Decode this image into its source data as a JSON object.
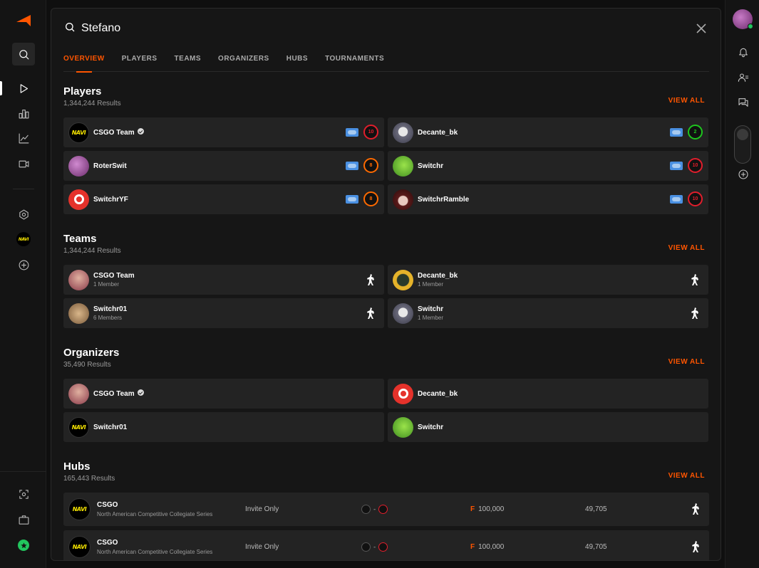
{
  "search": {
    "query": "Stefano"
  },
  "tabs": [
    {
      "label": "OVERVIEW"
    },
    {
      "label": "PLAYERS"
    },
    {
      "label": "TEAMS"
    },
    {
      "label": "ORGANIZERS"
    },
    {
      "label": "HUBS"
    },
    {
      "label": "TOURNAMENTS"
    }
  ],
  "players": {
    "title": "Players",
    "count": "1,344,244 Results",
    "view_all": "VIEW ALL",
    "items": [
      {
        "name": "CSGO Team",
        "level": "10",
        "level_color": "#e21e2c"
      },
      {
        "name": "Decante_bk",
        "level": "2",
        "level_color": "#1ec71e"
      },
      {
        "name": "RoterSwit",
        "level": "8",
        "level_color": "#ff6a00"
      },
      {
        "name": "Switchr",
        "level": "10",
        "level_color": "#e21e2c"
      },
      {
        "name": "SwitchrYF",
        "level": "8",
        "level_color": "#ff6a00"
      },
      {
        "name": "SwitchrRamble",
        "level": "10",
        "level_color": "#e21e2c"
      }
    ]
  },
  "teams": {
    "title": "Teams",
    "count": "1,344,244 Results",
    "view_all": "VIEW ALL",
    "items": [
      {
        "name": "CSGO Team",
        "members": "1 Member"
      },
      {
        "name": "Decante_bk",
        "members": "1 Member"
      },
      {
        "name": "Switchr01",
        "members": "6 Members"
      },
      {
        "name": "Switchr",
        "members": "1 Member"
      }
    ]
  },
  "organizers": {
    "title": "Organizers",
    "count": "35,490 Results",
    "view_all": "VIEW ALL",
    "items": [
      {
        "name": "CSGO Team"
      },
      {
        "name": "Decante_bk"
      },
      {
        "name": "Switchr01"
      },
      {
        "name": "Switchr"
      }
    ]
  },
  "hubs": {
    "title": "Hubs",
    "count": "165,443 Results",
    "view_all": "VIEW ALL",
    "items": [
      {
        "name": "CSGO",
        "desc": "North American Competitive Collegiate Series",
        "join": "Invite Only",
        "range_sep": "-",
        "prize_icon": "F",
        "prize": "100,000",
        "members": "49,705"
      },
      {
        "name": "CSGO",
        "desc": "North American Competitive Collegiate Series",
        "join": "Invite Only",
        "range_sep": "-",
        "prize_icon": "F",
        "prize": "100,000",
        "members": "49,705"
      }
    ]
  },
  "team_logo_text": "NAVI",
  "colors": {
    "accent": "#ff5500",
    "background": "#161616",
    "card": "#232323"
  }
}
